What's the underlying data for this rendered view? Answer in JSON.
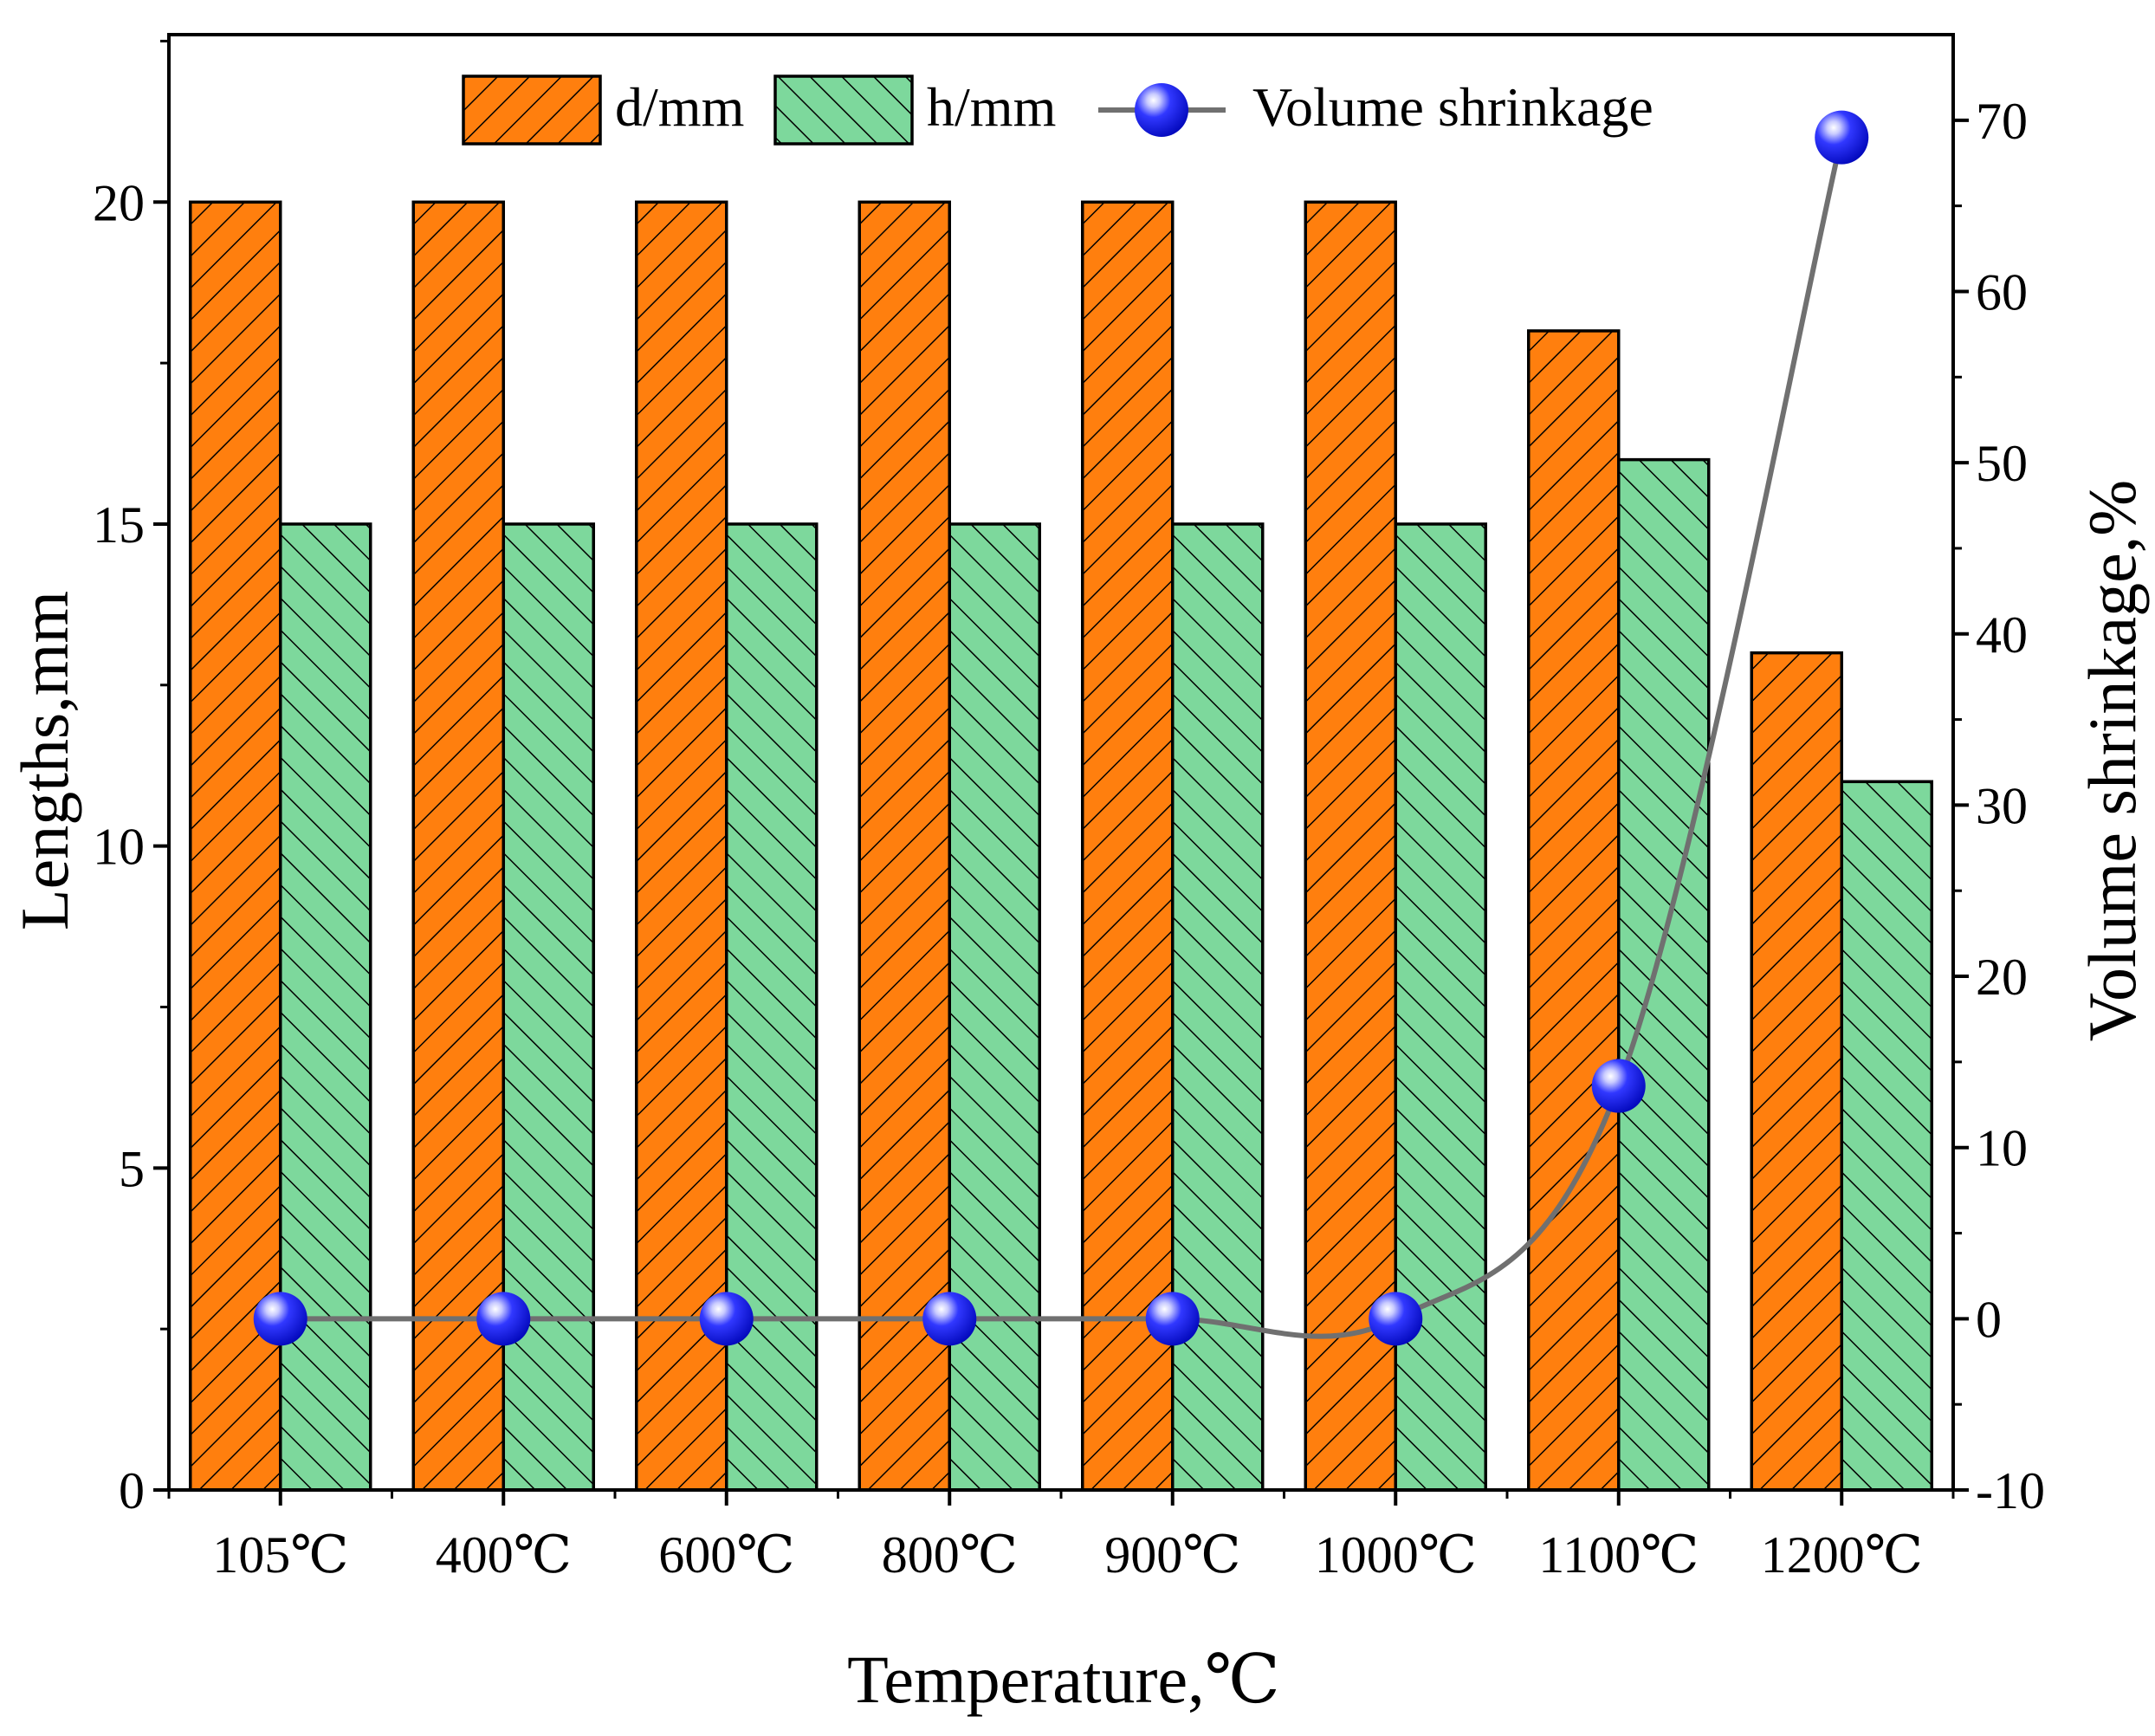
{
  "chart_data": {
    "type": "bar",
    "xlabel": "Temperature,℃",
    "ylabel": "Lengths,mm",
    "y2label": "Volume shrinkage,%",
    "categories": [
      "105℃",
      "400℃",
      "600℃",
      "800℃",
      "900℃",
      "1000℃",
      "1100℃",
      "1200℃"
    ],
    "ylim": [
      0,
      22.6
    ],
    "y2lim": [
      -10,
      75
    ],
    "yticks": [
      0,
      5,
      10,
      15,
      20
    ],
    "y2ticks": [
      -10,
      0,
      10,
      20,
      30,
      40,
      50,
      60,
      70
    ],
    "legend_position": "top-center",
    "grid": false,
    "series": [
      {
        "name": "d/mm",
        "kind": "bar",
        "axis": "left",
        "color": "#ff7f0e",
        "hatch": "forward-diagonal",
        "values": [
          20,
          20,
          20,
          20,
          20,
          20,
          18,
          13
        ]
      },
      {
        "name": "h/mm",
        "kind": "bar",
        "axis": "left",
        "color": "#7dd89c",
        "hatch": "back-diagonal",
        "values": [
          15,
          15,
          15,
          15,
          15,
          15,
          16,
          11
        ]
      },
      {
        "name": "Volume shrinkage",
        "kind": "line",
        "axis": "right",
        "color": "#707070",
        "marker_color": "#0a10e8",
        "smooth": true,
        "values": [
          0,
          0,
          0,
          0,
          0,
          0,
          13.6,
          69
        ]
      }
    ]
  }
}
